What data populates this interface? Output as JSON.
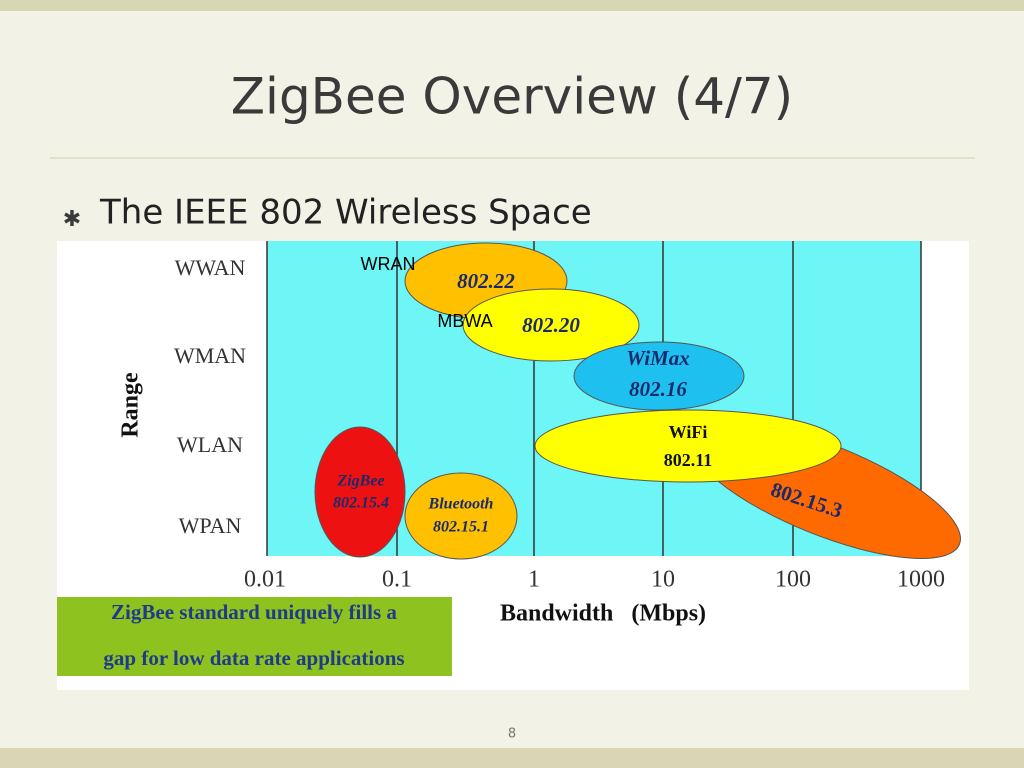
{
  "header": {
    "title": "ZigBee Overview (4/7)"
  },
  "bullets": [
    "The IEEE 802 Wireless Space"
  ],
  "diagram": {
    "y_axis": {
      "label": "Range",
      "categories": [
        "WWAN",
        "WMAN",
        "WLAN",
        "WPAN"
      ]
    },
    "x_axis": {
      "label": "Bandwidth   (Mbps)",
      "ticks": [
        "0.01",
        "0.1",
        "1",
        "10",
        "100",
        "1000"
      ]
    },
    "regions": [
      {
        "tag": "WRAN",
        "lines": [
          "802.22"
        ]
      },
      {
        "tag": "MBWA",
        "lines": [
          "802.20"
        ]
      },
      {
        "lines": [
          "WiMax",
          "802.16"
        ]
      },
      {
        "lines": [
          "802.15.3"
        ]
      },
      {
        "lines": [
          "WiFi",
          "802.11"
        ]
      },
      {
        "lines": [
          "ZigBee",
          "802.15.4"
        ]
      },
      {
        "lines": [
          "Bluetooth",
          "802.15.1"
        ]
      }
    ],
    "callout": [
      "ZigBee standard uniquely fills a",
      "gap for low data rate applications"
    ]
  },
  "footer": {
    "page": "8"
  }
}
